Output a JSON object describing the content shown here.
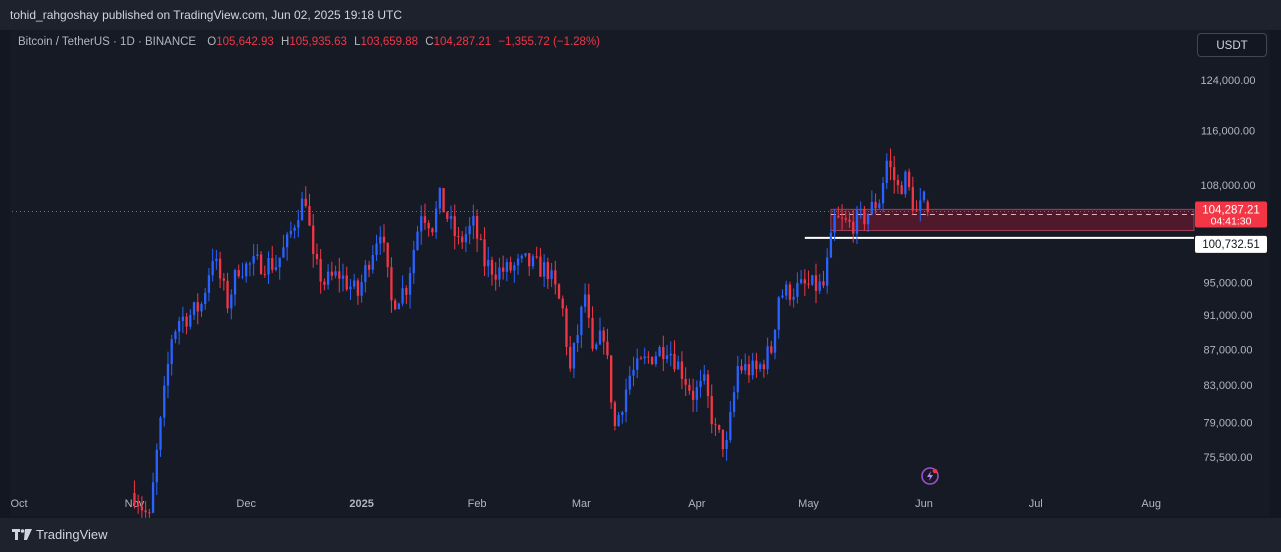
{
  "header": {
    "published": "tohid_rahgoshay published on TradingView.com, Jun 02, 2025 19:18 UTC"
  },
  "symbol": {
    "name": "Bitcoin / TetherUS · 1D · BINANCE",
    "o_label": "O",
    "o_value": "105,642.93",
    "h_label": "H",
    "h_value": "105,935.63",
    "l_label": "L",
    "l_value": "103,659.88",
    "c_label": "C",
    "c_value": "104,287.21",
    "change": "−1,355.72 (−1.28%)"
  },
  "currency_button": "USDT",
  "footer": {
    "brand": "TradingView"
  },
  "colors": {
    "up": "#2962ff",
    "down": "#f23645",
    "zone": "#5b1a2d",
    "bg": "#131722",
    "panel": "#161a25"
  },
  "chart_data": {
    "type": "candlestick",
    "y_tick_labels": [
      "124,000.00",
      "116,000.00",
      "108,000.00",
      "104,287.21",
      "100,732.51",
      "95,000.00",
      "91,000.00",
      "87,000.00",
      "83,000.00",
      "79,000.00",
      "75,500.00"
    ],
    "y_axis": {
      "scale": "log",
      "ticks": [
        124000,
        116000,
        108000,
        95000,
        91000,
        87000,
        83000,
        79000,
        75500
      ],
      "range": [
        73500,
        129000
      ]
    },
    "x_ticks": [
      {
        "label": "Oct",
        "date": "2024-10-01"
      },
      {
        "label": "Nov",
        "date": "2024-11-01"
      },
      {
        "label": "Dec",
        "date": "2024-12-01"
      },
      {
        "label": "2025",
        "date": "2025-01-01"
      },
      {
        "label": "Feb",
        "date": "2025-02-01"
      },
      {
        "label": "Mar",
        "date": "2025-03-01"
      },
      {
        "label": "Apr",
        "date": "2025-04-01"
      },
      {
        "label": "May",
        "date": "2025-05-01"
      },
      {
        "label": "Jun",
        "date": "2025-06-01"
      },
      {
        "label": "Jul",
        "date": "2025-07-01"
      },
      {
        "label": "Aug",
        "date": "2025-08-01"
      }
    ],
    "price_label": {
      "value": 104287.21,
      "text": "104,287.21",
      "countdown": "04:41:30"
    },
    "level_label": {
      "value": 100732.51,
      "text": "100,732.51"
    },
    "support_zone": {
      "from": 101700,
      "to": 104600,
      "start": "2025-05-07"
    },
    "anchors": [
      [
        "2024-11-01",
        72000
      ],
      [
        "2024-11-05",
        69500
      ],
      [
        "2024-11-07",
        75800
      ],
      [
        "2024-11-11",
        88500
      ],
      [
        "2024-11-13",
        90500
      ],
      [
        "2024-11-16",
        91000
      ],
      [
        "2024-11-19",
        92300
      ],
      [
        "2024-11-22",
        98500
      ],
      [
        "2024-11-26",
        92500
      ],
      [
        "2024-11-29",
        97000
      ],
      [
        "2024-12-01",
        97000
      ],
      [
        "2024-12-05",
        97500
      ],
      [
        "2024-12-09",
        97300
      ],
      [
        "2024-12-12",
        100000
      ],
      [
        "2024-12-15",
        104500
      ],
      [
        "2024-12-17",
        106300
      ],
      [
        "2024-12-19",
        97500
      ],
      [
        "2024-12-22",
        95000
      ],
      [
        "2024-12-26",
        96000
      ],
      [
        "2024-12-31",
        93500
      ],
      [
        "2025-01-03",
        98000
      ],
      [
        "2025-01-06",
        102200
      ],
      [
        "2025-01-09",
        92500
      ],
      [
        "2025-01-13",
        94500
      ],
      [
        "2025-01-17",
        104500
      ],
      [
        "2025-01-20",
        102500
      ],
      [
        "2025-01-22",
        106000
      ],
      [
        "2025-01-27",
        100000
      ],
      [
        "2025-01-31",
        102500
      ],
      [
        "2025-02-03",
        97500
      ],
      [
        "2025-02-06",
        96500
      ],
      [
        "2025-02-09",
        96500
      ],
      [
        "2025-02-14",
        97500
      ],
      [
        "2025-02-20",
        96500
      ],
      [
        "2025-02-24",
        91500
      ],
      [
        "2025-02-26",
        84500
      ],
      [
        "2025-03-02",
        93500
      ],
      [
        "2025-03-04",
        86000
      ],
      [
        "2025-03-07",
        89000
      ],
      [
        "2025-03-10",
        78500
      ],
      [
        "2025-03-14",
        84000
      ],
      [
        "2025-03-19",
        86000
      ],
      [
        "2025-03-24",
        87500
      ],
      [
        "2025-03-28",
        84500
      ],
      [
        "2025-03-31",
        82000
      ],
      [
        "2025-04-03",
        83000
      ],
      [
        "2025-04-06",
        78000
      ],
      [
        "2025-04-09",
        76500
      ],
      [
        "2025-04-12",
        85000
      ],
      [
        "2025-04-17",
        84500
      ],
      [
        "2025-04-21",
        87000
      ],
      [
        "2025-04-23",
        93500
      ],
      [
        "2025-04-30",
        94500
      ],
      [
        "2025-05-05",
        94500
      ],
      [
        "2025-05-08",
        103000
      ],
      [
        "2025-05-12",
        102500
      ],
      [
        "2025-05-16",
        103500
      ],
      [
        "2025-05-20",
        106000
      ],
      [
        "2025-05-22",
        111500
      ],
      [
        "2025-05-25",
        107500
      ],
      [
        "2025-05-27",
        108800
      ],
      [
        "2025-05-30",
        104000
      ],
      [
        "2025-06-01",
        105642.93
      ]
    ],
    "last_candle": {
      "date": "2025-06-02",
      "open": 105642.93,
      "high": 105935.63,
      "low": 103659.88,
      "close": 104287.21
    }
  }
}
